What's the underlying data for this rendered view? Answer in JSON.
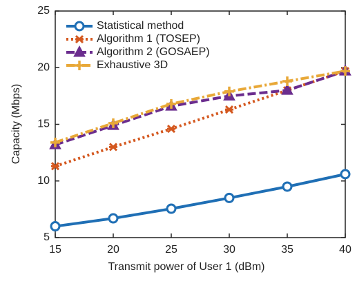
{
  "chart_data": {
    "type": "line",
    "xlabel": "Transmit power of User 1 (dBm)",
    "ylabel": "Capacity (Mbps)",
    "x": [
      15,
      20,
      25,
      30,
      35,
      40
    ],
    "xlim": [
      15,
      40
    ],
    "xticks": [
      15,
      20,
      25,
      30,
      35,
      40
    ],
    "ylim": [
      5,
      25
    ],
    "yticks": [
      5,
      10,
      15,
      20,
      25
    ],
    "legend": "upper left",
    "series": [
      {
        "name": "Statistical method",
        "color": "#1f6fb5",
        "dash": "solid",
        "marker": "circle",
        "values": [
          6.0,
          6.7,
          7.55,
          8.5,
          9.5,
          10.6
        ]
      },
      {
        "name": "Algorithm 1 (TOSEP)",
        "color": "#d4581f",
        "dash": "dotted",
        "marker": "star",
        "values": [
          11.3,
          13.0,
          14.6,
          16.3,
          18.0,
          19.7
        ]
      },
      {
        "name": "Algorithm 2 (GOSAEP)",
        "color": "#6b2d8e",
        "dash": "dashed",
        "marker": "triangle",
        "values": [
          13.2,
          14.9,
          16.6,
          17.5,
          18.0,
          19.7
        ]
      },
      {
        "name": "Exhaustive 3D",
        "color": "#e8a838",
        "dash": "dashdot",
        "marker": "plus",
        "values": [
          13.4,
          15.1,
          16.8,
          17.9,
          18.8,
          19.7
        ]
      }
    ]
  }
}
